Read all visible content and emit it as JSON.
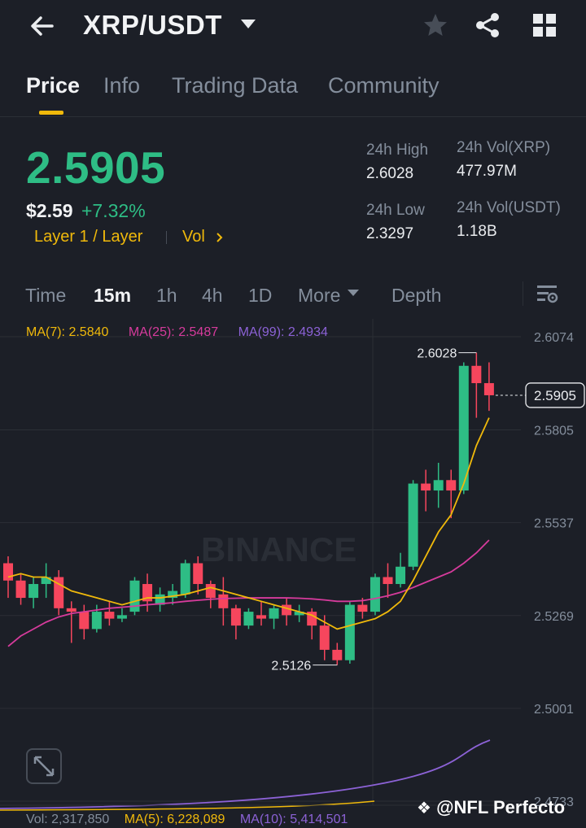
{
  "header": {
    "pair": "XRP/USDT",
    "icons": [
      "back-arrow-icon",
      "caret-down-icon",
      "star-icon",
      "share-icon",
      "grid-icon"
    ]
  },
  "tabs": [
    {
      "label": "Price",
      "active": true
    },
    {
      "label": "Info"
    },
    {
      "label": "Trading Data"
    },
    {
      "label": "Community"
    }
  ],
  "ticker": {
    "last_price": "2.5905",
    "usd_price": "$2.59",
    "change": "+7.32%",
    "tag_layer": "Layer 1 / Layer",
    "tag_vol": "Vol",
    "high_label": "24h High",
    "high_value": "2.6028",
    "low_label": "24h Low",
    "low_value": "2.3297",
    "vol_xrp_label": "24h Vol(XRP)",
    "vol_xrp_value": "477.97M",
    "vol_usdt_label": "24h Vol(USDT)",
    "vol_usdt_value": "1.18B"
  },
  "timeframes": [
    {
      "label": "Time"
    },
    {
      "label": "15m",
      "active": true
    },
    {
      "label": "1h"
    },
    {
      "label": "4h"
    },
    {
      "label": "1D"
    },
    {
      "label": "More"
    },
    {
      "label": "Depth"
    }
  ],
  "indicators": {
    "ma7": "MA(7): 2.5840",
    "ma25": "MA(25): 2.5487",
    "ma99": "MA(99): 2.4934",
    "vol": "Vol: 2,317,850",
    "vol_ma5": "MA(5): 6,228,089",
    "vol_ma10": "MA(10): 5,414,501"
  },
  "watermark": "BINANCE",
  "credit": "@NFL Perfecto",
  "colors": {
    "up": "#2ebd85",
    "down": "#f6465d",
    "ma7": "#f0b90b",
    "ma25": "#d63b9c",
    "ma99": "#8c62d6",
    "accent": "#f0b90b",
    "background": "#1c1f27"
  },
  "chart_data": {
    "type": "candlestick",
    "interval": "15m",
    "price_axis_ticks": [
      "2.6074",
      "2.5805",
      "2.5537",
      "2.5269",
      "2.5001",
      "2.4733"
    ],
    "last_price_label": "2.5905",
    "high_annotation": "2.6028",
    "low_annotation": "2.5126",
    "ylim": [
      2.4733,
      2.6074
    ],
    "candles": [
      {
        "o": 2.542,
        "h": 2.544,
        "c": 2.537,
        "l": 2.532
      },
      {
        "o": 2.537,
        "h": 2.539,
        "c": 2.532,
        "l": 2.53
      },
      {
        "o": 2.532,
        "h": 2.538,
        "c": 2.536,
        "l": 2.529
      },
      {
        "o": 2.536,
        "h": 2.542,
        "c": 2.538,
        "l": 2.532
      },
      {
        "o": 2.538,
        "h": 2.54,
        "c": 2.529,
        "l": 2.527
      },
      {
        "o": 2.529,
        "h": 2.531,
        "c": 2.528,
        "l": 2.519
      },
      {
        "o": 2.528,
        "h": 2.53,
        "c": 2.523,
        "l": 2.52
      },
      {
        "o": 2.523,
        "h": 2.53,
        "c": 2.528,
        "l": 2.522
      },
      {
        "o": 2.528,
        "h": 2.531,
        "c": 2.526,
        "l": 2.524
      },
      {
        "o": 2.526,
        "h": 2.529,
        "c": 2.527,
        "l": 2.525
      },
      {
        "o": 2.528,
        "h": 2.538,
        "c": 2.537,
        "l": 2.527
      },
      {
        "o": 2.536,
        "h": 2.539,
        "c": 2.531,
        "l": 2.528
      },
      {
        "o": 2.53,
        "h": 2.535,
        "c": 2.533,
        "l": 2.528
      },
      {
        "o": 2.532,
        "h": 2.536,
        "c": 2.534,
        "l": 2.53
      },
      {
        "o": 2.533,
        "h": 2.543,
        "c": 2.542,
        "l": 2.532
      },
      {
        "o": 2.542,
        "h": 2.544,
        "c": 2.536,
        "l": 2.533
      },
      {
        "o": 2.536,
        "h": 2.537,
        "c": 2.532,
        "l": 2.529
      },
      {
        "o": 2.533,
        "h": 2.538,
        "c": 2.529,
        "l": 2.524
      },
      {
        "o": 2.529,
        "h": 2.53,
        "c": 2.524,
        "l": 2.52
      },
      {
        "o": 2.524,
        "h": 2.529,
        "c": 2.528,
        "l": 2.523
      },
      {
        "o": 2.527,
        "h": 2.531,
        "c": 2.526,
        "l": 2.524
      },
      {
        "o": 2.526,
        "h": 2.53,
        "c": 2.529,
        "l": 2.523
      },
      {
        "o": 2.53,
        "h": 2.532,
        "c": 2.527,
        "l": 2.524
      },
      {
        "o": 2.527,
        "h": 2.53,
        "c": 2.528,
        "l": 2.525
      },
      {
        "o": 2.528,
        "h": 2.529,
        "c": 2.524,
        "l": 2.52
      },
      {
        "o": 2.524,
        "h": 2.527,
        "c": 2.517,
        "l": 2.514
      },
      {
        "o": 2.517,
        "h": 2.519,
        "c": 2.514,
        "l": 2.5126
      },
      {
        "o": 2.514,
        "h": 2.531,
        "c": 2.53,
        "l": 2.513
      },
      {
        "o": 2.53,
        "h": 2.532,
        "c": 2.528,
        "l": 2.526
      },
      {
        "o": 2.528,
        "h": 2.539,
        "c": 2.538,
        "l": 2.527
      },
      {
        "o": 2.538,
        "h": 2.542,
        "c": 2.536,
        "l": 2.532
      },
      {
        "o": 2.536,
        "h": 2.545,
        "c": 2.541,
        "l": 2.535
      },
      {
        "o": 2.541,
        "h": 2.566,
        "c": 2.565,
        "l": 2.54
      },
      {
        "o": 2.565,
        "h": 2.569,
        "c": 2.563,
        "l": 2.557
      },
      {
        "o": 2.563,
        "h": 2.571,
        "c": 2.566,
        "l": 2.558
      },
      {
        "o": 2.566,
        "h": 2.569,
        "c": 2.563,
        "l": 2.555
      },
      {
        "o": 2.563,
        "h": 2.6,
        "c": 2.599,
        "l": 2.562
      },
      {
        "o": 2.599,
        "h": 2.6028,
        "c": 2.594,
        "l": 2.584
      },
      {
        "o": 2.594,
        "h": 2.6,
        "c": 2.5905,
        "l": 2.586
      }
    ],
    "ma7": [
      2.538,
      2.539,
      2.538,
      2.538,
      2.536,
      2.534,
      2.533,
      2.532,
      2.531,
      2.53,
      2.531,
      2.532,
      2.532,
      2.5325,
      2.533,
      2.534,
      2.535,
      2.534,
      2.533,
      2.532,
      2.531,
      2.53,
      2.529,
      2.528,
      2.527,
      2.525,
      2.523,
      2.524,
      2.525,
      2.526,
      2.528,
      2.531,
      2.537,
      2.544,
      2.551,
      2.556,
      2.565,
      2.576,
      2.584
    ],
    "ma25": [
      2.518,
      2.521,
      2.523,
      2.525,
      2.5265,
      2.5275,
      2.528,
      2.5285,
      2.529,
      2.5293,
      2.5296,
      2.53,
      2.5303,
      2.5306,
      2.531,
      2.5313,
      2.5316,
      2.5318,
      2.5319,
      2.532,
      2.532,
      2.532,
      2.532,
      2.5319,
      2.5317,
      2.5314,
      2.531,
      2.531,
      2.5312,
      2.5318,
      2.5326,
      2.5336,
      2.535,
      2.5365,
      2.538,
      2.5395,
      2.542,
      2.545,
      2.5487
    ]
  }
}
